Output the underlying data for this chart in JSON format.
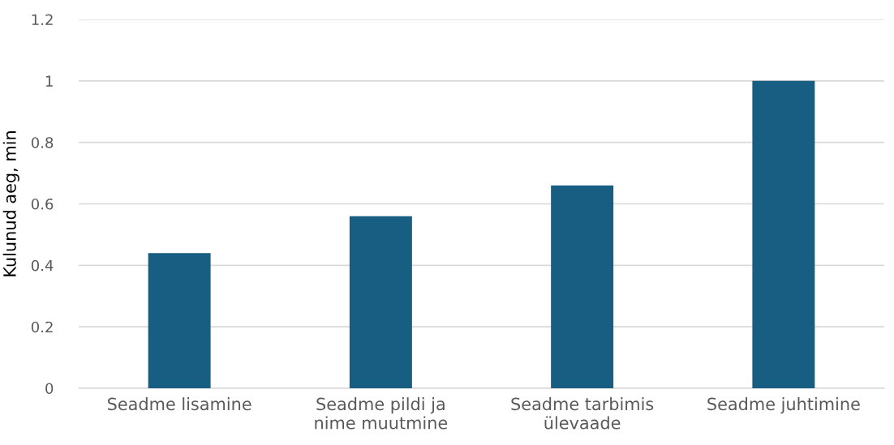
{
  "chart_data": {
    "type": "bar",
    "ylabel": "Kulunud aeg, min",
    "categories": [
      "Seadme lisamine",
      "Seadme pildi ja nime muutmine",
      "Seadme tarbimis ülevaade",
      "Seadme juhtimine"
    ],
    "values": [
      0.44,
      0.56,
      0.66,
      1.0
    ],
    "color": "#175e82",
    "ylim": [
      0,
      1.2
    ],
    "yticks": [
      0,
      0.2,
      0.4,
      0.6,
      0.8,
      1,
      1.2
    ],
    "grid": "y"
  }
}
